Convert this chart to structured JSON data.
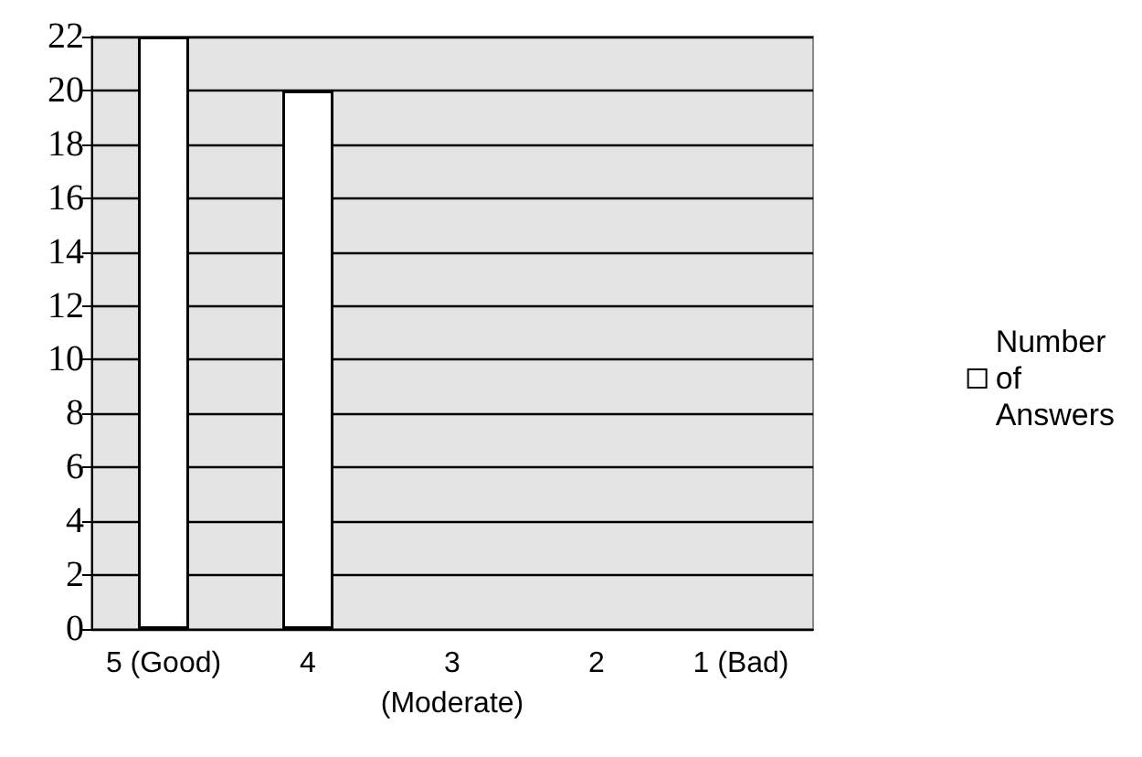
{
  "chart_data": {
    "type": "bar",
    "categories": [
      "5 (Good)",
      "4",
      "3\n(Moderate)",
      "2",
      "1 (Bad)"
    ],
    "series": [
      {
        "name": "Number of Answers",
        "color": "#ffffff",
        "values": [
          22,
          20,
          0,
          0,
          0
        ]
      }
    ],
    "ylim": [
      0,
      22
    ],
    "yticks": [
      0,
      2,
      4,
      6,
      8,
      10,
      12,
      14,
      16,
      18,
      20,
      22
    ],
    "grid": "y",
    "legend": "right"
  }
}
